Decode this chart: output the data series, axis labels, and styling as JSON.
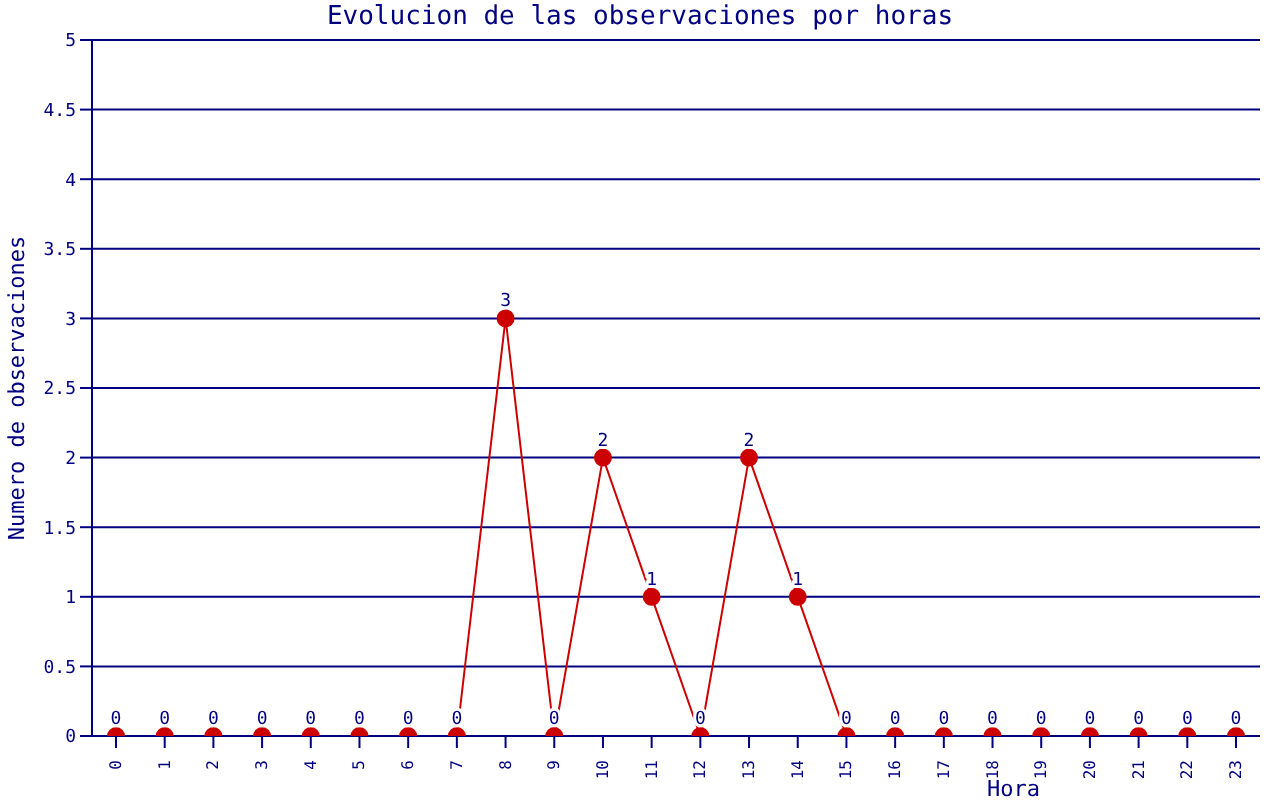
{
  "chart_data": {
    "type": "line",
    "title": "Evolucion de las observaciones por horas",
    "xlabel": "Hora",
    "ylabel": "Numero de observaciones",
    "categories": [
      "0",
      "1",
      "2",
      "3",
      "4",
      "5",
      "6",
      "7",
      "8",
      "9",
      "10",
      "11",
      "12",
      "13",
      "14",
      "15",
      "16",
      "17",
      "18",
      "19",
      "20",
      "21",
      "22",
      "23"
    ],
    "series": [
      {
        "color": "#cc0000",
        "values": [
          0,
          0,
          0,
          0,
          0,
          0,
          0,
          0,
          3,
          0,
          2,
          1,
          0,
          2,
          1,
          0,
          0,
          0,
          0,
          0,
          0,
          0,
          0,
          0
        ]
      }
    ],
    "ylim": [
      0,
      5
    ],
    "yticks": [
      0,
      0.5,
      1,
      1.5,
      2,
      2.5,
      3,
      3.5,
      4,
      4.5,
      5
    ],
    "grid": "y",
    "marker": "circle",
    "data_labels": true,
    "legend": false
  }
}
